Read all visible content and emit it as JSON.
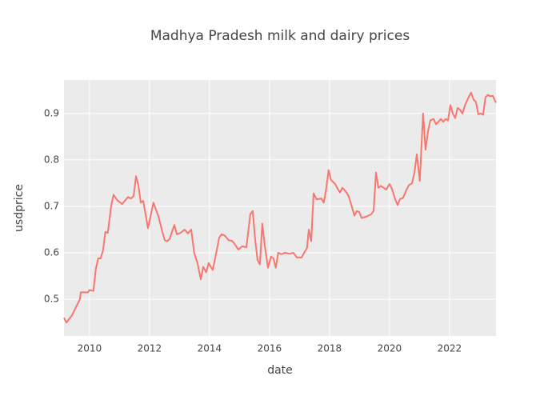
{
  "chart_data": {
    "type": "line",
    "title": "Madhya Pradesh milk and dairy prices",
    "x_label": "date",
    "y_label": "usdprice",
    "x": [
      2009.15,
      2009.23,
      2009.41,
      2009.68,
      2009.71,
      2009.95,
      2010.0,
      2010.13,
      2010.21,
      2010.29,
      2010.37,
      2010.45,
      2010.53,
      2010.61,
      2010.72,
      2010.8,
      2010.93,
      2011.09,
      2011.28,
      2011.39,
      2011.47,
      2011.55,
      2011.63,
      2011.71,
      2011.79,
      2011.95,
      2012.13,
      2012.29,
      2012.43,
      2012.51,
      2012.59,
      2012.67,
      2012.83,
      2012.91,
      2013.04,
      2013.17,
      2013.28,
      2013.39,
      2013.49,
      2013.6,
      2013.71,
      2013.79,
      2013.89,
      2013.97,
      2014.11,
      2014.24,
      2014.32,
      2014.4,
      2014.51,
      2014.64,
      2014.75,
      2014.85,
      2014.96,
      2015.09,
      2015.23,
      2015.36,
      2015.44,
      2015.52,
      2015.6,
      2015.68,
      2015.76,
      2015.84,
      2015.95,
      2016.05,
      2016.13,
      2016.21,
      2016.29,
      2016.4,
      2016.51,
      2016.67,
      2016.8,
      2016.91,
      2017.07,
      2017.17,
      2017.25,
      2017.31,
      2017.39,
      2017.47,
      2017.57,
      2017.73,
      2017.81,
      2017.89,
      2017.97,
      2018.05,
      2018.19,
      2018.27,
      2018.35,
      2018.43,
      2018.53,
      2018.64,
      2018.75,
      2018.83,
      2018.91,
      2018.99,
      2019.07,
      2019.23,
      2019.39,
      2019.47,
      2019.55,
      2019.63,
      2019.71,
      2019.81,
      2019.89,
      2020.0,
      2020.08,
      2020.19,
      2020.27,
      2020.35,
      2020.45,
      2020.56,
      2020.64,
      2020.75,
      2020.83,
      2020.91,
      2021.01,
      2021.12,
      2021.2,
      2021.28,
      2021.36,
      2021.47,
      2021.55,
      2021.63,
      2021.71,
      2021.79,
      2021.87,
      2021.95,
      2022.03,
      2022.11,
      2022.19,
      2022.27,
      2022.35,
      2022.43,
      2022.53,
      2022.64,
      2022.72,
      2022.8,
      2022.88,
      2022.96,
      2023.04,
      2023.12,
      2023.2,
      2023.28,
      2023.36,
      2023.44,
      2023.55
    ],
    "series": [
      {
        "color": "#f8766d",
        "values": [
          0.46,
          0.45,
          0.465,
          0.5,
          0.515,
          0.515,
          0.52,
          0.518,
          0.565,
          0.588,
          0.588,
          0.605,
          0.645,
          0.643,
          0.7,
          0.725,
          0.713,
          0.705,
          0.72,
          0.717,
          0.722,
          0.765,
          0.745,
          0.708,
          0.712,
          0.653,
          0.708,
          0.68,
          0.645,
          0.627,
          0.625,
          0.63,
          0.66,
          0.64,
          0.643,
          0.65,
          0.642,
          0.65,
          0.6,
          0.578,
          0.543,
          0.57,
          0.558,
          0.578,
          0.563,
          0.605,
          0.632,
          0.64,
          0.637,
          0.627,
          0.626,
          0.618,
          0.607,
          0.614,
          0.612,
          0.683,
          0.69,
          0.63,
          0.585,
          0.575,
          0.663,
          0.617,
          0.568,
          0.592,
          0.588,
          0.568,
          0.6,
          0.597,
          0.6,
          0.598,
          0.6,
          0.59,
          0.59,
          0.602,
          0.61,
          0.65,
          0.625,
          0.728,
          0.715,
          0.717,
          0.708,
          0.738,
          0.778,
          0.757,
          0.748,
          0.738,
          0.73,
          0.74,
          0.733,
          0.722,
          0.698,
          0.68,
          0.69,
          0.688,
          0.675,
          0.678,
          0.683,
          0.69,
          0.773,
          0.74,
          0.744,
          0.74,
          0.736,
          0.748,
          0.738,
          0.715,
          0.703,
          0.716,
          0.718,
          0.735,
          0.745,
          0.75,
          0.772,
          0.812,
          0.755,
          0.9,
          0.822,
          0.86,
          0.885,
          0.888,
          0.877,
          0.882,
          0.888,
          0.882,
          0.888,
          0.885,
          0.918,
          0.9,
          0.89,
          0.912,
          0.908,
          0.9,
          0.92,
          0.935,
          0.945,
          0.93,
          0.925,
          0.898,
          0.9,
          0.897,
          0.935,
          0.94,
          0.937,
          0.938,
          0.923
        ]
      }
    ],
    "xlim": [
      2009.15,
      2023.55
    ],
    "xticks": [
      2010,
      2012,
      2014,
      2016,
      2018,
      2020,
      2022
    ],
    "ylim": [
      0.421,
      0.972
    ],
    "yticks": [
      0.5,
      0.6,
      0.7,
      0.8,
      0.9
    ],
    "grid": true
  }
}
